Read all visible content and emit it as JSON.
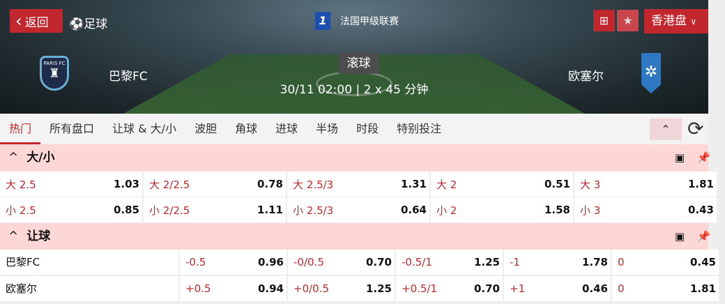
{
  "header": {
    "back_label": "返回",
    "sport_label": "足球",
    "league": "法国甲级联赛",
    "league_logo": "L1",
    "odds_format": "香港盘",
    "status": "滚球",
    "datetime": "30/11 02:00",
    "duration": "2 x 45 分钟",
    "home_team": "巴黎FC",
    "away_team": "欧塞尔",
    "home_crest_text": "PARIS FC",
    "accent": "#c1272d"
  },
  "tabs": [
    {
      "label": "热门",
      "active": true
    },
    {
      "label": "所有盘口"
    },
    {
      "label": "让球 & 大/小"
    },
    {
      "label": "波胆"
    },
    {
      "label": "角球"
    },
    {
      "label": "进球"
    },
    {
      "label": "半场"
    },
    {
      "label": "时段"
    },
    {
      "label": "特别投注"
    }
  ],
  "over_under": {
    "title": "大/小",
    "rows": [
      [
        {
          "label": "大 2.5",
          "odds": "1.03"
        },
        {
          "label": "大 2/2.5",
          "odds": "0.78"
        },
        {
          "label": "大 2.5/3",
          "odds": "1.31"
        },
        {
          "label": "大 2",
          "odds": "0.51"
        },
        {
          "label": "大 3",
          "odds": "1.81"
        }
      ],
      [
        {
          "label": "小 2.5",
          "odds": "0.85"
        },
        {
          "label": "小 2/2.5",
          "odds": "1.11"
        },
        {
          "label": "小 2.5/3",
          "odds": "0.64"
        },
        {
          "label": "小 2",
          "odds": "1.58"
        },
        {
          "label": "小 3",
          "odds": "0.43"
        }
      ]
    ]
  },
  "handicap": {
    "title": "让球",
    "rows": [
      {
        "team": "巴黎FC",
        "cells": [
          {
            "label": "-0.5",
            "odds": "0.96"
          },
          {
            "label": "-0/0.5",
            "odds": "0.70"
          },
          {
            "label": "-0.5/1",
            "odds": "1.25"
          },
          {
            "label": "-1",
            "odds": "1.78"
          },
          {
            "label": "0",
            "odds": "0.45"
          }
        ]
      },
      {
        "team": "欧塞尔",
        "cells": [
          {
            "label": "+0.5",
            "odds": "0.94"
          },
          {
            "label": "+0/0.5",
            "odds": "1.25"
          },
          {
            "label": "+0.5/1",
            "odds": "0.70"
          },
          {
            "label": "+1",
            "odds": "0.46"
          },
          {
            "label": "0",
            "odds": "1.81"
          }
        ]
      }
    ]
  }
}
